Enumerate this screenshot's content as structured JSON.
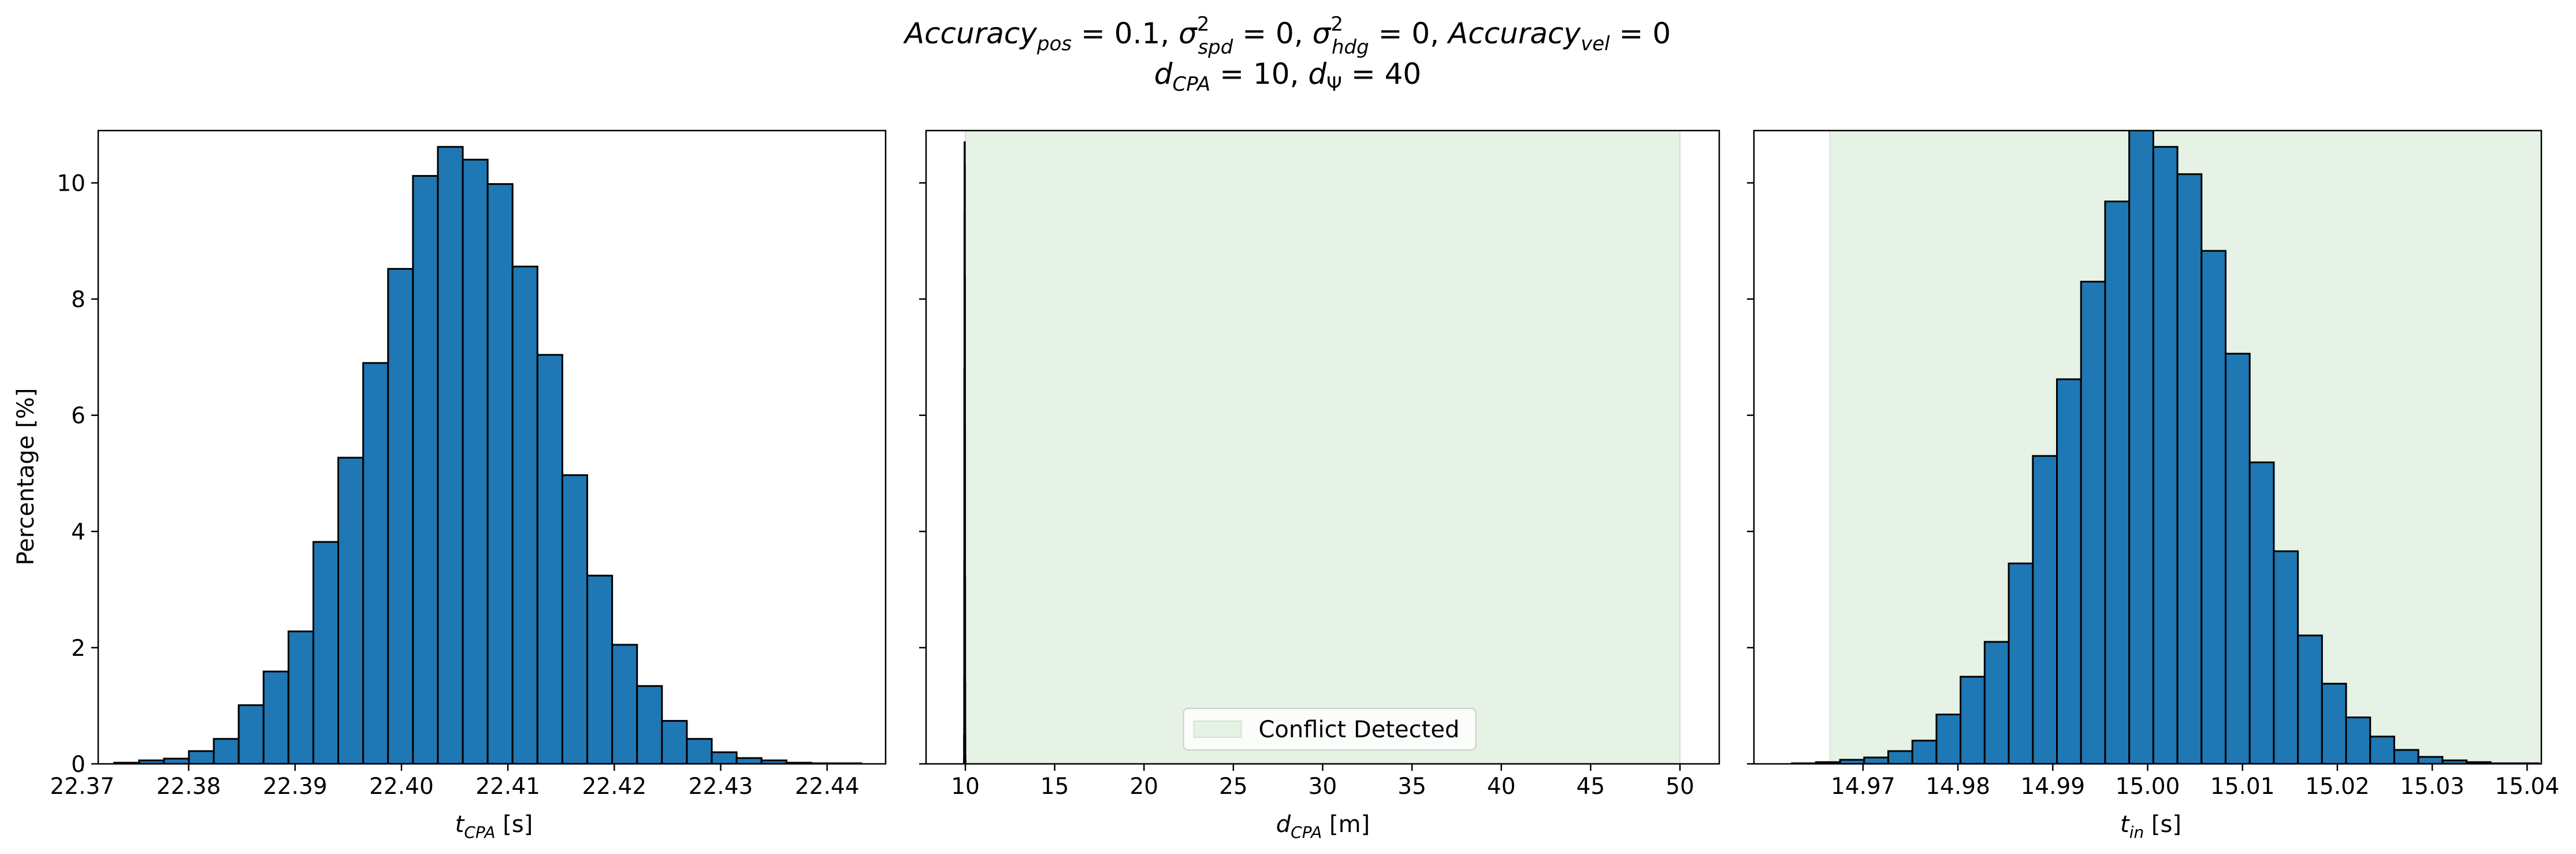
{
  "figure": {
    "title_line1": "Accuracy_pos = 0.1, σ²_spd = 0, σ²_hdg = 0, Accuracy_vel = 0",
    "title_line2": "d_CPA = 10, d_Ψ = 40"
  },
  "chart_data": [
    {
      "type": "bar",
      "name": "tcpa-histogram",
      "xlabel": "t_CPA [s]",
      "ylabel": "Percentage [%]",
      "xlim": [
        22.3715,
        22.4455
      ],
      "ylim": [
        0,
        10.9
      ],
      "yticks": [
        0,
        2,
        4,
        6,
        8,
        10
      ],
      "xticks": [
        22.37,
        22.38,
        22.39,
        22.4,
        22.41,
        22.42,
        22.43,
        22.44
      ],
      "xtick_labels": [
        "22.37",
        "22.38",
        "22.39",
        "22.40",
        "22.41",
        "22.42",
        "22.43",
        "22.44"
      ],
      "bin_start": 22.373,
      "bin_width": 0.00234,
      "values": [
        0.02,
        0.06,
        0.09,
        0.22,
        0.43,
        1.01,
        1.59,
        2.28,
        3.82,
        5.27,
        6.9,
        8.52,
        10.12,
        10.62,
        10.4,
        9.98,
        8.56,
        7.04,
        4.97,
        3.24,
        2.05,
        1.34,
        0.74,
        0.43,
        0.2,
        0.1,
        0.06,
        0.02,
        0.01,
        0.01
      ],
      "bar_color": "#1f77b4",
      "edge_color": "#000000"
    },
    {
      "type": "bar",
      "name": "dcpa-histogram",
      "xlabel": "d_CPA [m]",
      "xlim": [
        7.8,
        52.2
      ],
      "ylim": [
        0,
        10.9
      ],
      "xticks": [
        10,
        15,
        20,
        25,
        30,
        35,
        40,
        45,
        50
      ],
      "xtick_labels": [
        "10",
        "15",
        "20",
        "25",
        "30",
        "35",
        "40",
        "45",
        "50"
      ],
      "bin_start": 9.92,
      "bin_width": 0.0053,
      "values": [
        0.1,
        0.5,
        1.5,
        3.5,
        6.8,
        9.5,
        10.7,
        10.3,
        8.4,
        5.8,
        3.2,
        1.4,
        0.5,
        0.15,
        0.05
      ],
      "bar_color": "#1f77b4",
      "edge_color": "#000000",
      "shaded_region": {
        "x0": 10,
        "x1": 50,
        "color": "#e5f2e5",
        "label": "Conflict Detected"
      },
      "legend": {
        "position": "lower center",
        "entries": [
          "Conflict Detected"
        ]
      }
    },
    {
      "type": "bar",
      "name": "tin-histogram",
      "xlabel": "t_in [s]",
      "xlim": [
        14.9585,
        15.0415
      ],
      "ylim": [
        0,
        10.9
      ],
      "xticks": [
        14.97,
        14.98,
        14.99,
        15.0,
        15.01,
        15.02,
        15.03,
        15.04
      ],
      "xtick_labels": [
        "14.97",
        "14.98",
        "14.99",
        "15.00",
        "15.01",
        "15.02",
        "15.03",
        "15.04"
      ],
      "bin_start": 14.9625,
      "bin_width": 0.00254,
      "values": [
        0.01,
        0.03,
        0.07,
        0.11,
        0.22,
        0.4,
        0.85,
        1.5,
        2.1,
        3.45,
        5.3,
        6.62,
        8.3,
        9.68,
        10.98,
        10.62,
        10.15,
        8.83,
        7.06,
        5.19,
        3.66,
        2.21,
        1.38,
        0.8,
        0.47,
        0.24,
        0.12,
        0.06,
        0.03,
        0.01,
        0.01
      ],
      "bar_color": "#1f77b4",
      "edge_color": "#000000",
      "shaded_region": {
        "x0": 14.9665,
        "x1": 15.0415,
        "color": "#e5f2e5"
      }
    }
  ]
}
